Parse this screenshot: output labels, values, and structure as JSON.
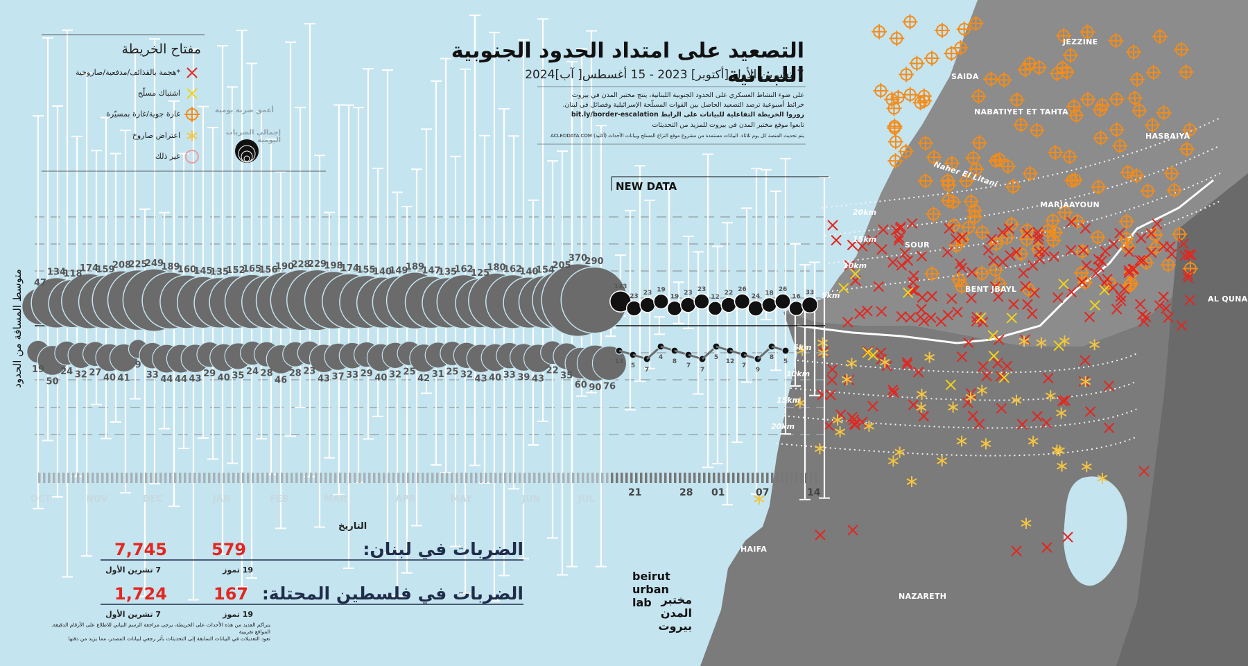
{
  "title": "التصعيد على امتداد الحدود الجنوبية اللبنانية",
  "subtitle": "7 تشرين الأول [أكتوبر] 2023 - 15 أغسطس[ آب]2024",
  "description": [
    "على ضوء النشاط العسكري على الحدود الجنوبية اللبنانية، ينتج مختبر المدن في بيروت",
    "خرائط أسبوعية ترصد التصعيد الحاصل بين القوات المسلّحة الإسرائيلية وفصائل في لبنان.",
    "زوروا الخريطة التفاعلية للبيانات على الرابط bit.ly/border-escalation",
    "تابعوا موقع مختبر المدن في بيروت للمزيد من التحديثات",
    "يتم تحديث المنصة كل يوم ثلاثاء. البيانات مستمدة من مشروع موقع النزاع المسلح وبيانات الأحداث (أكليد) ACLEDDATA.COM"
  ],
  "legend": {
    "title": "مفتاح الخريطة",
    "items": [
      {
        "label": "*هجمة بالقذائف/مدفعية/صاروخية",
        "icon": "red-x-icon",
        "color": "#e3261f"
      },
      {
        "label": "اشتباك مسلّح",
        "icon": "yellow-x-icon",
        "color": "#f2d21b"
      },
      {
        "label": "غارة جوية/غارة بمسيّرة",
        "icon": "orange-target-icon",
        "color": "#f28c1b"
      },
      {
        "label": "اعتراض صاروخ",
        "icon": "yellow-star-icon",
        "color": "#f5c542"
      },
      {
        "label": "غير ذلك",
        "icon": "pink-circle-icon",
        "color": "#e9a0a0"
      }
    ],
    "deepest_label": "أعمق ضربة يومية",
    "total_label": "إجمالي الضربات اليومية"
  },
  "new_data_label": "NEW DATA",
  "y_axis_label": "متوسط المسافة من الحدود",
  "x_axis_label": "التاريخ",
  "months": [
    "OCT",
    "NOV",
    "DEC",
    "JAN",
    "FEB",
    "MAR",
    "APR",
    "MAY",
    "JUN",
    "JUL"
  ],
  "days": [
    "21",
    "28",
    "01",
    "07",
    "14"
  ],
  "stats": {
    "lebanon": {
      "label": "الضربات في لبنان:",
      "total": "7,745",
      "total_since": "7 تشرين الأول",
      "recent": "579",
      "recent_since": "19 تموز"
    },
    "palestine": {
      "label": "الضربات في فلسطين المحتلة:",
      "total": "1,724",
      "total_since": "7 تشرين الأول",
      "recent": "167",
      "recent_since": "19 تموز"
    }
  },
  "footnote": [
    "يتراكم العديد من هذه الأحداث على الخريطة، يرجى مراجعة الرسم البياني للاطلاع على الأرقام الدقيقة. المواقع تقريبية",
    "تعود التعديلات في البيانات السابقة إلى التحديثات بأثر رجعي لبيانات المصدر، مما يزيد من دقتها"
  ],
  "logo": {
    "en": [
      "beirut",
      "urban",
      "lab"
    ],
    "ar": [
      "مختبر",
      "المدن",
      "بيروت"
    ]
  },
  "map": {
    "cities": [
      "JEZZINE",
      "SAIDA",
      "NABATIYET ET TAHTA",
      "HASBAIYA",
      "MARJAAYOUN",
      "SOUR",
      "BENT JBAYL",
      "AL QUNA",
      "HAIFA",
      "NAZARETH"
    ],
    "river": "Naher El Litani",
    "distance_labels_lebanon": [
      "20km",
      "15km",
      "10km",
      "5km"
    ],
    "distance_labels_palestine": [
      "5km",
      "10km",
      "15km",
      "20km"
    ]
  },
  "colors": {
    "sea": "#c4e4ef",
    "land": "#8c8c8c",
    "bubble": "#6b6b6b",
    "new_data": "#111111",
    "accent": "#e3261f"
  },
  "chart_data": {
    "type": "bubble-timeline",
    "lebanon_top_labels": [
      "47",
      "134",
      "118",
      "174",
      "159",
      "208",
      "225",
      "249",
      "189",
      "160",
      "145",
      "135",
      "152",
      "165",
      "156",
      "190",
      "228",
      "229",
      "198",
      "174",
      "155",
      "140",
      "149",
      "189",
      "147",
      "135",
      "162",
      "125",
      "180",
      "162",
      "140",
      "154",
      "205",
      "370",
      "290",
      "143",
      "23",
      "23",
      "19",
      "19",
      "23",
      "23",
      "12",
      "22",
      "26",
      "24",
      "18",
      "26",
      "16",
      "33"
    ],
    "palestine_bottom_labels": [
      "19",
      "50",
      "24",
      "32",
      "27",
      "40",
      "41",
      "9",
      "33",
      "44",
      "44",
      "43",
      "29",
      "40",
      "35",
      "24",
      "28",
      "46",
      "28",
      "23",
      "43",
      "37",
      "33",
      "29",
      "40",
      "32",
      "25",
      "42",
      "31",
      "25",
      "32",
      "43",
      "40",
      "33",
      "39",
      "43",
      "22",
      "35",
      "60",
      "90",
      "76",
      "13",
      "5",
      "7",
      "4",
      "8",
      "7",
      "7",
      "5",
      "12",
      "7",
      "9",
      "8",
      "5"
    ]
  }
}
